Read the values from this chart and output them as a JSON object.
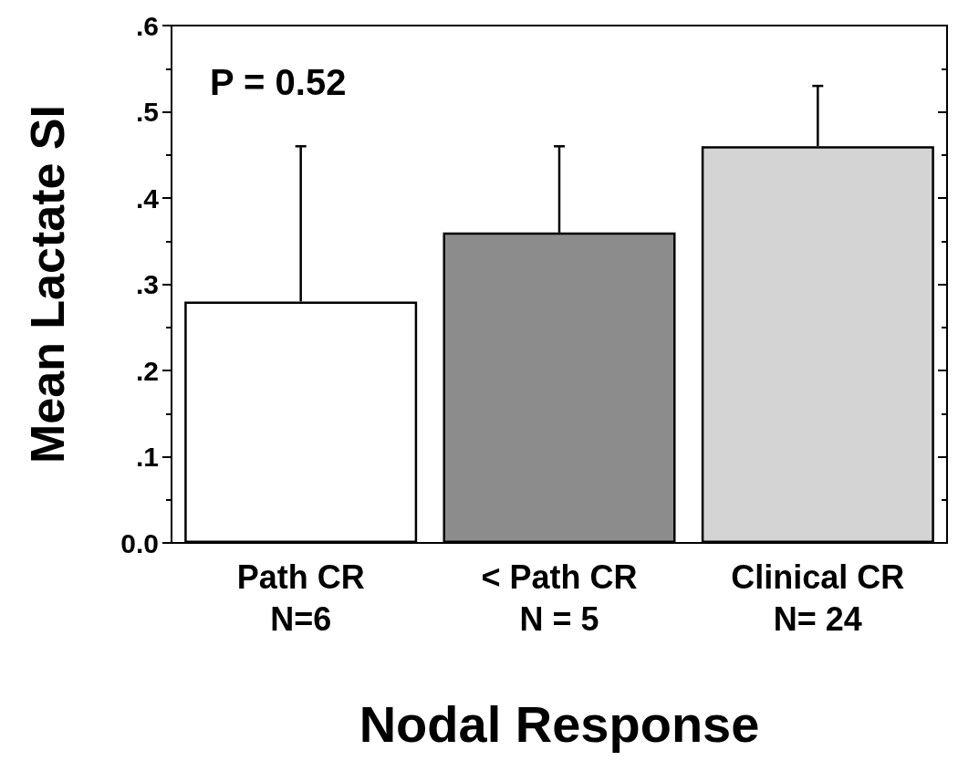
{
  "chart_data": {
    "type": "bar",
    "xlabel": "Nodal Response",
    "ylabel": "Mean Lactate SI",
    "categories": [
      "Path CR\nN=6",
      "< Path CR\nN = 5",
      "Clinical CR\nN= 24"
    ],
    "values": [
      0.28,
      0.36,
      0.46
    ],
    "colors": [
      "#ffffff",
      "#8c8c8c",
      "#d4d4d4"
    ],
    "errors": [
      [
        0.28,
        0.46
      ],
      [
        0.36,
        0.46
      ],
      [
        0.46,
        0.53
      ]
    ],
    "ylim": [
      0,
      0.6
    ],
    "yticks": [
      {
        "value": 0,
        "label": "0.0"
      },
      {
        "value": 0.1,
        "label": ".1"
      },
      {
        "value": 0.2,
        "label": ".2"
      },
      {
        "value": 0.3,
        "label": ".3"
      },
      {
        "value": 0.4,
        "label": ".4"
      },
      {
        "value": 0.5,
        "label": ".5"
      },
      {
        "value": 0.6,
        "label": ".6"
      }
    ],
    "annotations": [
      "P = 0.52"
    ],
    "grid": false
  }
}
